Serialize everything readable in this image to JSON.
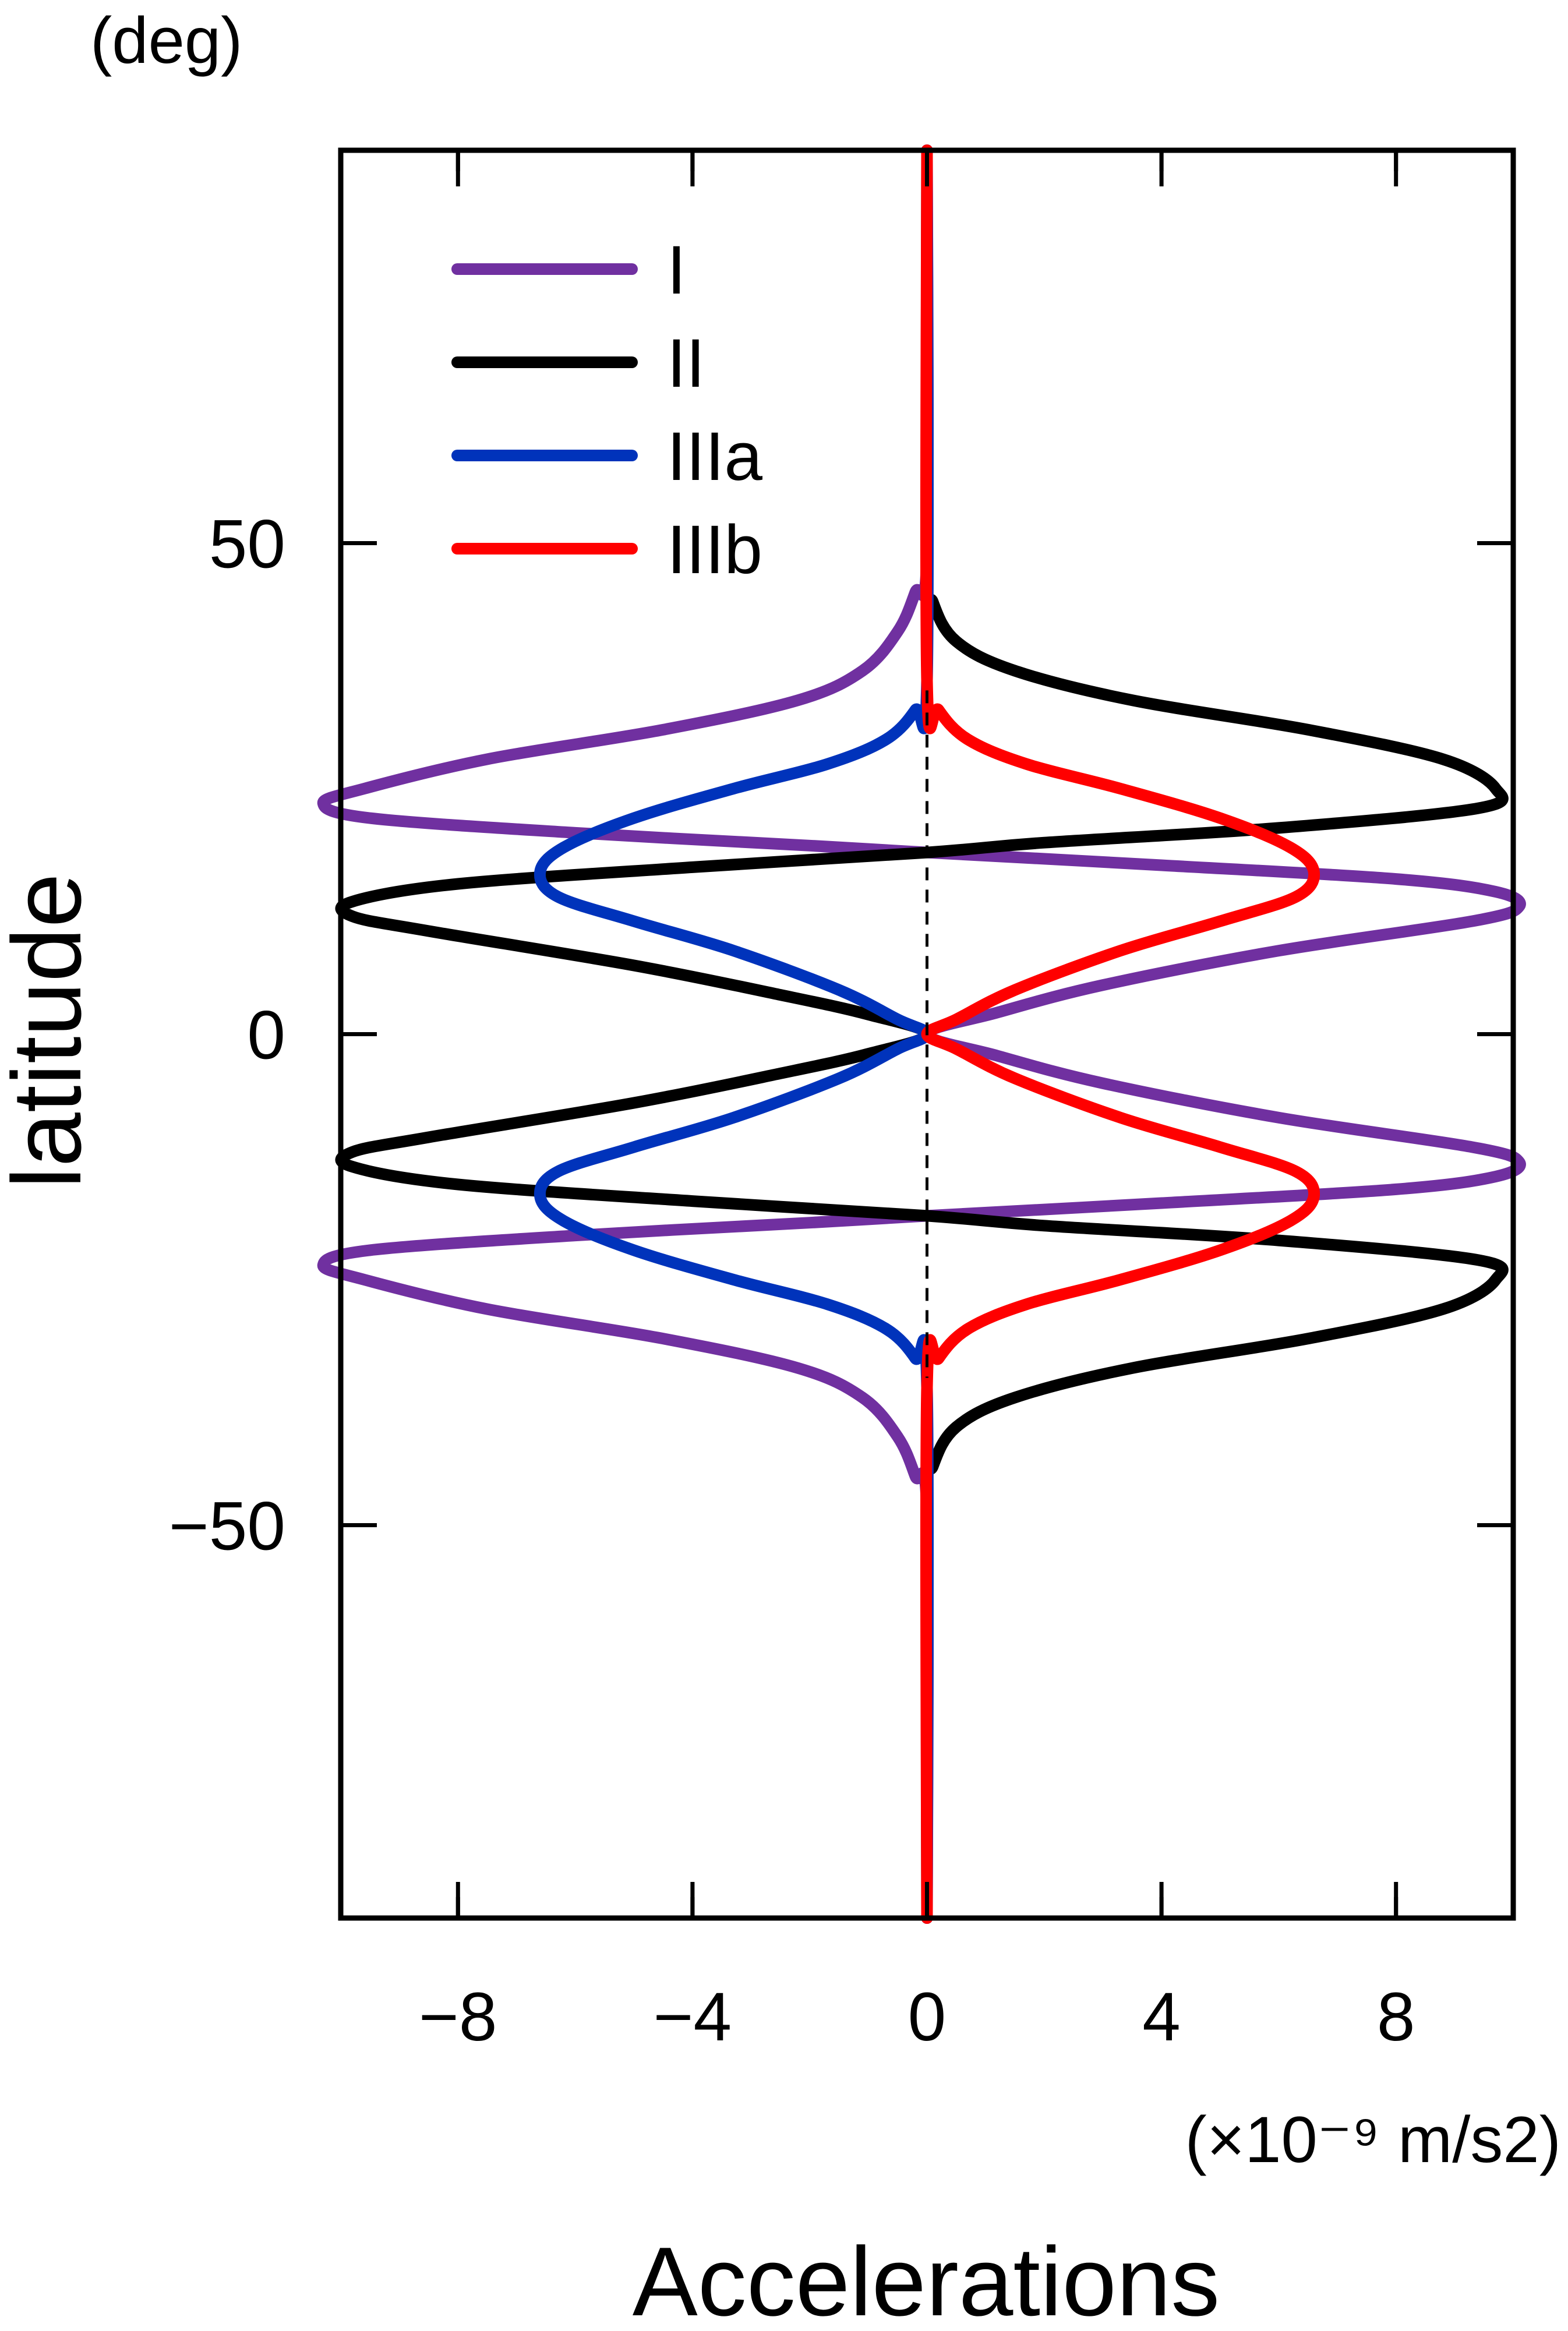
{
  "chart_data": {
    "type": "line",
    "orientation": "vertical",
    "xlabel": "Accelerations",
    "xunit": "(×10⁻⁹ m/s2)",
    "ylabel": "latitude",
    "yunit": "(deg)",
    "xlim": [
      -10,
      10
    ],
    "ylim": [
      -90,
      90
    ],
    "x_ticks": [
      -8,
      -4,
      0,
      4,
      8
    ],
    "x_tick_labels": [
      "−8",
      "−4",
      "0",
      "4",
      "8"
    ],
    "y_ticks": [
      -50,
      0,
      50
    ],
    "y_tick_labels": [
      "−50",
      "0",
      "50"
    ],
    "grid": false,
    "legend_position": "top-left",
    "reference_line": {
      "x": 0,
      "style": "dashed",
      "ymin": -35,
      "ymax": 35
    },
    "series": [
      {
        "name": "I",
        "color": "#7030a0",
        "points": [
          [
            0,
            -90
          ],
          [
            0,
            -49
          ],
          [
            -0.2,
            -45
          ],
          [
            -0.5,
            -41
          ],
          [
            -1.1,
            -37
          ],
          [
            -2.2,
            -34
          ],
          [
            -4.5,
            -31
          ],
          [
            -7.5,
            -28
          ],
          [
            -9.6,
            -25
          ],
          [
            -10.3,
            -23.5
          ],
          [
            -9.5,
            -22
          ],
          [
            -6.0,
            -20.5
          ],
          [
            -2.0,
            -19.2
          ],
          [
            0,
            -18.5
          ],
          [
            4.0,
            -17.2
          ],
          [
            8.0,
            -15.8
          ],
          [
            9.7,
            -14.5
          ],
          [
            10.1,
            -13
          ],
          [
            9.3,
            -11.5
          ],
          [
            6.0,
            -8.5
          ],
          [
            3.0,
            -5
          ],
          [
            1.2,
            -2.2
          ],
          [
            0,
            0
          ],
          [
            1.2,
            2.2
          ],
          [
            3.0,
            5
          ],
          [
            6.0,
            8.5
          ],
          [
            9.3,
            11.5
          ],
          [
            10.1,
            13
          ],
          [
            9.7,
            14.5
          ],
          [
            8.0,
            15.8
          ],
          [
            4.0,
            17.2
          ],
          [
            0,
            18.5
          ],
          [
            -2.0,
            19.2
          ],
          [
            -6.0,
            20.5
          ],
          [
            -9.5,
            22
          ],
          [
            -10.3,
            23.5
          ],
          [
            -9.6,
            25
          ],
          [
            -7.5,
            28
          ],
          [
            -4.5,
            31
          ],
          [
            -2.2,
            34
          ],
          [
            -1.1,
            37
          ],
          [
            -0.5,
            41
          ],
          [
            -0.2,
            45
          ],
          [
            0,
            49
          ],
          [
            0,
            90
          ]
        ]
      },
      {
        "name": "II",
        "color": "#000000",
        "points": [
          [
            0,
            -90
          ],
          [
            0,
            -48
          ],
          [
            0.1,
            -44
          ],
          [
            0.5,
            -40
          ],
          [
            1.5,
            -37
          ],
          [
            3.5,
            -34
          ],
          [
            6.5,
            -31
          ],
          [
            8.8,
            -28
          ],
          [
            9.7,
            -25
          ],
          [
            9.4,
            -23
          ],
          [
            6.0,
            -21
          ],
          [
            2.0,
            -19.5
          ],
          [
            0,
            -18.5
          ],
          [
            -4.0,
            -17
          ],
          [
            -8.0,
            -15.3
          ],
          [
            -9.8,
            -13.5
          ],
          [
            -9.8,
            -12
          ],
          [
            -8.5,
            -10.5
          ],
          [
            -5.0,
            -7
          ],
          [
            -2.5,
            -4
          ],
          [
            -1.0,
            -2
          ],
          [
            0,
            0
          ],
          [
            -1.0,
            2
          ],
          [
            -2.5,
            4
          ],
          [
            -5.0,
            7
          ],
          [
            -8.5,
            10.5
          ],
          [
            -9.8,
            12
          ],
          [
            -9.8,
            13.5
          ],
          [
            -8.0,
            15.3
          ],
          [
            -4.0,
            17
          ],
          [
            0,
            18.5
          ],
          [
            2.0,
            19.5
          ],
          [
            6.0,
            21
          ],
          [
            9.4,
            23
          ],
          [
            9.7,
            25
          ],
          [
            8.8,
            28
          ],
          [
            6.5,
            31
          ],
          [
            3.5,
            34
          ],
          [
            1.5,
            37
          ],
          [
            0.5,
            40
          ],
          [
            0.1,
            44
          ],
          [
            0,
            48
          ],
          [
            0,
            90
          ]
        ]
      },
      {
        "name": "IIIa",
        "color": "#0033bb",
        "points": [
          [
            0,
            -90
          ],
          [
            0,
            -36
          ],
          [
            -0.2,
            -33
          ],
          [
            -0.7,
            -30
          ],
          [
            -1.7,
            -27.5
          ],
          [
            -3.3,
            -25
          ],
          [
            -5.0,
            -22
          ],
          [
            -6.2,
            -19
          ],
          [
            -6.6,
            -16.5
          ],
          [
            -6.3,
            -14
          ],
          [
            -5.0,
            -11.5
          ],
          [
            -3.3,
            -8.5
          ],
          [
            -1.5,
            -4.5
          ],
          [
            -0.5,
            -1.5
          ],
          [
            0,
            0
          ],
          [
            -0.5,
            1.5
          ],
          [
            -1.5,
            4.5
          ],
          [
            -3.3,
            8.5
          ],
          [
            -5.0,
            11.5
          ],
          [
            -6.3,
            14
          ],
          [
            -6.6,
            16.5
          ],
          [
            -6.2,
            19
          ],
          [
            -5.0,
            22
          ],
          [
            -3.3,
            25
          ],
          [
            -1.7,
            27.5
          ],
          [
            -0.7,
            30
          ],
          [
            -0.2,
            33
          ],
          [
            0,
            36
          ],
          [
            0,
            90
          ]
        ]
      },
      {
        "name": "IIIb",
        "color": "#ff0000",
        "points": [
          [
            0,
            -90
          ],
          [
            0,
            -36
          ],
          [
            0.2,
            -33
          ],
          [
            0.7,
            -30
          ],
          [
            1.7,
            -27.5
          ],
          [
            3.3,
            -25
          ],
          [
            5.0,
            -22
          ],
          [
            6.2,
            -19
          ],
          [
            6.6,
            -16.5
          ],
          [
            6.3,
            -14
          ],
          [
            5.0,
            -11.5
          ],
          [
            3.3,
            -8.5
          ],
          [
            1.5,
            -4.5
          ],
          [
            0.5,
            -1.5
          ],
          [
            0,
            0
          ],
          [
            0.5,
            1.5
          ],
          [
            1.5,
            4.5
          ],
          [
            3.3,
            8.5
          ],
          [
            5.0,
            11.5
          ],
          [
            6.3,
            14
          ],
          [
            6.6,
            16.5
          ],
          [
            6.2,
            19
          ],
          [
            5.0,
            22
          ],
          [
            3.3,
            25
          ],
          [
            1.7,
            27.5
          ],
          [
            0.7,
            30
          ],
          [
            0.2,
            33
          ],
          [
            0,
            36
          ],
          [
            0,
            90
          ]
        ]
      }
    ]
  }
}
